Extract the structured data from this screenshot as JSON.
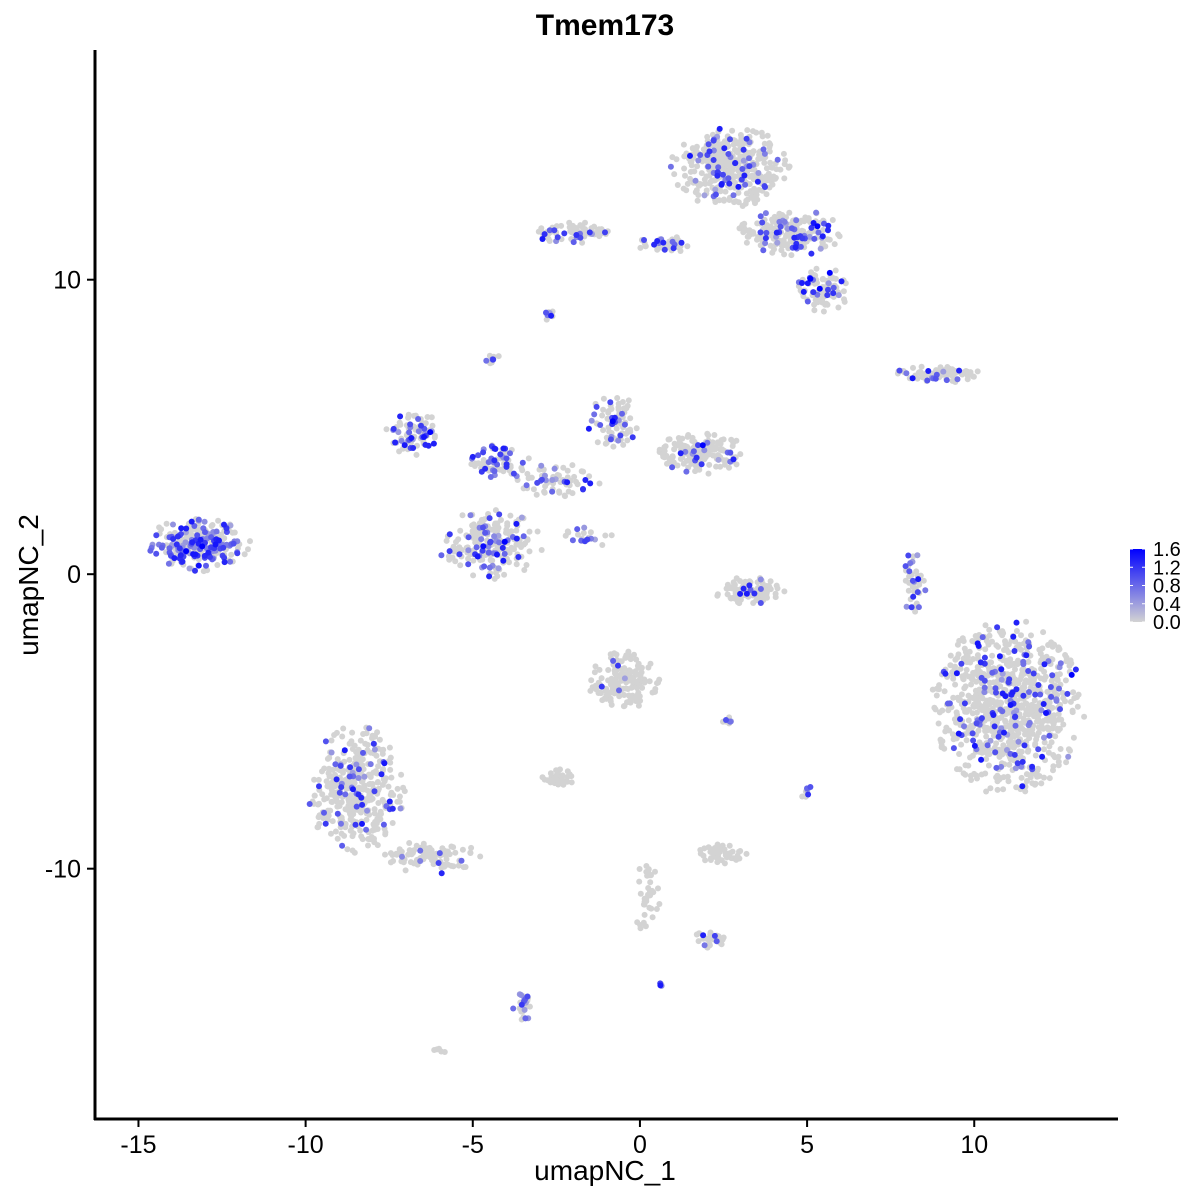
{
  "chart_data": {
    "type": "scatter",
    "title": "Tmem173",
    "xlabel": "umapNC_1",
    "ylabel": "umapNC_2",
    "xlim": [
      -16.3,
      14.3
    ],
    "ylim": [
      -18.5,
      17.8
    ],
    "xticks": [
      -15,
      -10,
      -5,
      0,
      5,
      10
    ],
    "xtick_labels": [
      "-15",
      "-10",
      "-5",
      "0",
      "5",
      "10"
    ],
    "yticks": [
      -10,
      0,
      10
    ],
    "ytick_labels": [
      "-10",
      "0",
      "10"
    ],
    "grid": false,
    "legend": {
      "position": "right",
      "type": "colorbar",
      "title": "",
      "range": [
        0.0,
        1.6
      ],
      "breaks": [
        0.0,
        0.4,
        0.8,
        1.2,
        1.6
      ],
      "break_labels": [
        "0.0",
        "0.4",
        "0.8",
        "1.2",
        "1.6"
      ],
      "low_color": "#d3d3d3",
      "high_color": "#0000ff"
    },
    "clusters": [
      {
        "name": "A",
        "cx": 11.0,
        "cy": -4.5,
        "rx": 2.3,
        "ry": 3.0,
        "n": 900,
        "frac": 0.15
      },
      {
        "name": "B",
        "cx": 2.7,
        "cy": 13.8,
        "rx": 1.8,
        "ry": 1.4,
        "n": 420,
        "frac": 0.12
      },
      {
        "name": "C",
        "cx": 4.5,
        "cy": 11.6,
        "rx": 1.6,
        "ry": 0.8,
        "n": 200,
        "frac": 0.3
      },
      {
        "name": "D",
        "cx": 5.5,
        "cy": 9.7,
        "rx": 0.8,
        "ry": 0.8,
        "n": 90,
        "frac": 0.2
      },
      {
        "name": "E",
        "cx": -2.0,
        "cy": 11.6,
        "rx": 1.2,
        "ry": 0.4,
        "n": 70,
        "frac": 0.25
      },
      {
        "name": "F",
        "cx": 0.8,
        "cy": 11.2,
        "rx": 0.9,
        "ry": 0.3,
        "n": 40,
        "frac": 0.3
      },
      {
        "name": "G",
        "cx": 9.0,
        "cy": 6.8,
        "rx": 1.4,
        "ry": 0.3,
        "n": 80,
        "frac": 0.15
      },
      {
        "name": "H",
        "cx": -13.2,
        "cy": 1.0,
        "rx": 1.6,
        "ry": 0.9,
        "n": 260,
        "frac": 0.45
      },
      {
        "name": "I",
        "cx": -4.5,
        "cy": 1.0,
        "rx": 1.6,
        "ry": 1.2,
        "n": 230,
        "frac": 0.25
      },
      {
        "name": "J",
        "cx": -6.8,
        "cy": 4.8,
        "rx": 0.8,
        "ry": 0.8,
        "n": 80,
        "frac": 0.45
      },
      {
        "name": "K",
        "cx": -4.2,
        "cy": 3.8,
        "rx": 0.9,
        "ry": 0.6,
        "n": 70,
        "frac": 0.4
      },
      {
        "name": "L",
        "cx": 1.8,
        "cy": 4.1,
        "rx": 1.4,
        "ry": 0.7,
        "n": 160,
        "frac": 0.1
      },
      {
        "name": "M",
        "cx": -0.8,
        "cy": 5.2,
        "rx": 0.8,
        "ry": 0.9,
        "n": 80,
        "frac": 0.2
      },
      {
        "name": "N",
        "cx": -2.5,
        "cy": 3.2,
        "rx": 1.4,
        "ry": 0.6,
        "n": 70,
        "frac": 0.3
      },
      {
        "name": "O",
        "cx": 3.3,
        "cy": -0.6,
        "rx": 1.1,
        "ry": 0.5,
        "n": 110,
        "frac": 0.05
      },
      {
        "name": "P",
        "cx": -8.5,
        "cy": -7.3,
        "rx": 1.5,
        "ry": 2.2,
        "n": 380,
        "frac": 0.18
      },
      {
        "name": "Q",
        "cx": -6.2,
        "cy": -9.6,
        "rx": 1.5,
        "ry": 0.6,
        "n": 90,
        "frac": 0.15
      },
      {
        "name": "R",
        "cx": -0.5,
        "cy": -3.6,
        "rx": 1.1,
        "ry": 1.0,
        "n": 160,
        "frac": 0.03
      },
      {
        "name": "S",
        "cx": 8.2,
        "cy": -0.3,
        "rx": 0.4,
        "ry": 1.2,
        "n": 40,
        "frac": 0.4
      },
      {
        "name": "T",
        "cx": -2.5,
        "cy": -6.9,
        "rx": 0.6,
        "ry": 0.3,
        "n": 40,
        "frac": 0.0
      },
      {
        "name": "U",
        "cx": 2.4,
        "cy": -9.5,
        "rx": 0.8,
        "ry": 0.4,
        "n": 50,
        "frac": 0.05
      },
      {
        "name": "V",
        "cx": 2.2,
        "cy": -12.4,
        "rx": 0.6,
        "ry": 0.3,
        "n": 30,
        "frac": 0.15
      },
      {
        "name": "W",
        "cx": -3.5,
        "cy": -14.8,
        "rx": 0.3,
        "ry": 0.6,
        "n": 25,
        "frac": 0.4
      },
      {
        "name": "X",
        "cx": 0.2,
        "cy": -11.0,
        "rx": 0.4,
        "ry": 1.4,
        "n": 40,
        "frac": 0.0
      },
      {
        "name": "Y",
        "cx": -4.4,
        "cy": 7.3,
        "rx": 0.2,
        "ry": 0.3,
        "n": 10,
        "frac": 0.6
      },
      {
        "name": "Z",
        "cx": -2.7,
        "cy": 8.8,
        "rx": 0.2,
        "ry": 0.2,
        "n": 8,
        "frac": 0.3
      },
      {
        "name": "AA",
        "cx": 5.0,
        "cy": -7.4,
        "rx": 0.2,
        "ry": 0.3,
        "n": 8,
        "frac": 0.5
      },
      {
        "name": "AB",
        "cx": 2.7,
        "cy": -5.0,
        "rx": 0.3,
        "ry": 0.15,
        "n": 8,
        "frac": 0.5
      },
      {
        "name": "AC",
        "cx": 0.6,
        "cy": -13.9,
        "rx": 0.1,
        "ry": 0.1,
        "n": 4,
        "frac": 0.8
      },
      {
        "name": "AD",
        "cx": -6.0,
        "cy": -16.2,
        "rx": 0.2,
        "ry": 0.1,
        "n": 5,
        "frac": 0.0
      },
      {
        "name": "AE",
        "cx": -1.5,
        "cy": 1.3,
        "rx": 0.8,
        "ry": 0.4,
        "n": 20,
        "frac": 0.6
      }
    ]
  }
}
